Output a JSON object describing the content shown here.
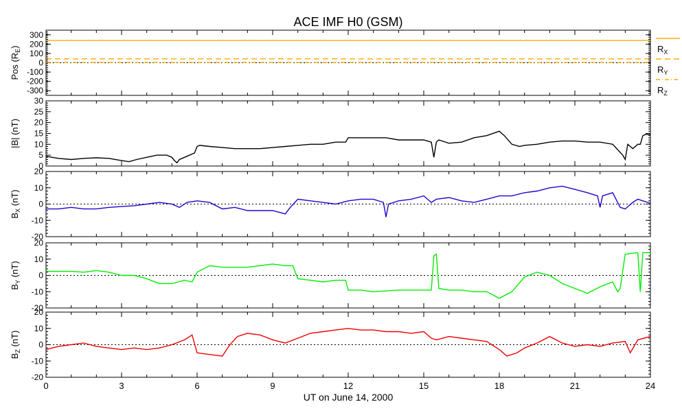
{
  "chart_data": {
    "title": "ACE IMF H0 (GSM)",
    "xlabel": "UT on June 14, 2000",
    "xlim": [
      0,
      24
    ],
    "xticks": [
      "0",
      "3",
      "6",
      "9",
      "12",
      "15",
      "18",
      "21",
      "24"
    ],
    "panels": [
      {
        "type": "line",
        "ylabel_main": "Pos (R",
        "ylabel_sub": "E",
        "ylabel_end": ")",
        "ylim": [
          -350,
          350
        ],
        "yticks": [
          300,
          200,
          100,
          0,
          -100,
          -200,
          -300
        ],
        "zero_line": true,
        "series": [
          {
            "name": "R",
            "sub": "X",
            "color": "#ffaa00",
            "dash": "solid",
            "x": [
              0,
              24
            ],
            "y": [
              240,
              240
            ]
          },
          {
            "name": "R",
            "sub": "Y",
            "color": "#ffaa00",
            "dash": "dashed",
            "x": [
              0,
              24
            ],
            "y": [
              42,
              42
            ]
          },
          {
            "name": "R",
            "sub": "Z",
            "color": "#ffaa00",
            "dash": "dashdot",
            "x": [
              0,
              24
            ],
            "y": [
              3,
              3
            ]
          }
        ]
      },
      {
        "type": "line",
        "ylabel_main": "|B| (nT)",
        "ylim": [
          0,
          30
        ],
        "yticks": [
          30,
          25,
          20,
          15,
          10,
          5,
          0
        ],
        "zero_line": false,
        "series": [
          {
            "name": "|B|",
            "color": "#000000",
            "x": [
              0,
              0.5,
              1,
              1.5,
              2,
              2.5,
              3,
              3.3,
              3.6,
              4,
              4.4,
              4.8,
              5,
              5.1,
              5.2,
              5.3,
              5.5,
              5.7,
              5.9,
              6.0,
              6.1,
              6.5,
              7,
              7.5,
              8,
              8.5,
              9,
              9.5,
              10,
              10.5,
              11,
              11.5,
              11.9,
              12.0,
              12.5,
              13,
              13.5,
              14,
              14.5,
              15,
              15.3,
              15.4,
              15.5,
              15.6,
              16,
              16.5,
              17,
              17.5,
              18,
              18.2,
              18.5,
              18.8,
              19,
              19.5,
              20,
              20.5,
              21,
              21.5,
              22,
              22.5,
              22.9,
              23.0,
              23.1,
              23.2,
              23.3,
              23.5,
              23.6,
              23.7,
              23.8,
              24
            ],
            "y": [
              4.5,
              3.5,
              3,
              3.5,
              3.8,
              3.5,
              2.5,
              2,
              3,
              4,
              5,
              5,
              4,
              2.5,
              1.5,
              3,
              4,
              5,
              6,
              9,
              9.5,
              9,
              8.5,
              8,
              8,
              8,
              8.5,
              9,
              9.5,
              10,
              10,
              11,
              11,
              13,
              13,
              13,
              13,
              12,
              12,
              12,
              11,
              4,
              11,
              12,
              10.5,
              11,
              13,
              14,
              16,
              14,
              10,
              9,
              9.5,
              10,
              11,
              11.5,
              11.5,
              11,
              11,
              10,
              5,
              3,
              10,
              9,
              8,
              10,
              10,
              14,
              14.5,
              14.5
            ]
          }
        ]
      },
      {
        "type": "line",
        "ylabel_main": "B",
        "ylabel_sub": "X",
        "ylabel_end": " (nT)",
        "ylim": [
          -20,
          20
        ],
        "yticks": [
          20,
          10,
          0,
          -10,
          -20
        ],
        "zero_line": true,
        "series": [
          {
            "name": "B_X",
            "color": "#2200cc",
            "x": [
              0,
              0.5,
              1,
              1.5,
              2,
              2.5,
              3,
              3.5,
              4,
              4.5,
              5,
              5.3,
              5.6,
              6,
              6.5,
              7,
              7.5,
              8,
              8.5,
              9,
              9.5,
              9.7,
              10,
              10.5,
              11,
              11.5,
              12,
              12.5,
              13,
              13.4,
              13.5,
              13.6,
              14,
              14.5,
              15,
              15.3,
              15.5,
              16,
              16.5,
              17,
              17.5,
              18,
              18.5,
              19,
              19.5,
              20,
              20.5,
              21,
              21.5,
              21.9,
              22.0,
              22.1,
              22.5,
              22.8,
              23,
              23.3,
              23.5,
              24
            ],
            "y": [
              -3,
              -3,
              -2,
              -3,
              -3,
              -2,
              -1.5,
              -1,
              0,
              1,
              0,
              -2,
              1,
              2,
              1,
              -3,
              -2,
              -4,
              -4,
              -4,
              -6,
              -2,
              3,
              2,
              1,
              0,
              2,
              3,
              3,
              1,
              -8,
              0,
              2,
              3,
              5,
              1,
              3,
              4,
              2,
              1,
              3,
              5,
              5,
              7,
              8,
              10,
              11,
              9,
              7,
              5,
              -2,
              5,
              7,
              -2,
              -3,
              1,
              3,
              0.5
            ]
          }
        ]
      },
      {
        "type": "line",
        "ylabel_main": "B",
        "ylabel_sub": "Y",
        "ylabel_end": " (nT)",
        "ylim": [
          -20,
          20
        ],
        "yticks": [
          20,
          10,
          0,
          -10,
          -20
        ],
        "zero_line": true,
        "series": [
          {
            "name": "B_Y",
            "color": "#00ee00",
            "x": [
              0,
              0.5,
              1,
              1.5,
              2,
              2.5,
              3,
              3.5,
              4,
              4.5,
              5,
              5.5,
              5.8,
              6,
              6.5,
              7,
              7.5,
              8,
              8.5,
              9,
              9.5,
              9.8,
              10,
              10.5,
              11,
              11.5,
              11.9,
              12.0,
              12.5,
              13,
              13.5,
              14,
              14.5,
              15,
              15.3,
              15.4,
              15.5,
              15.6,
              16,
              16.5,
              17,
              17.5,
              18,
              18.5,
              19,
              19.5,
              20,
              20.5,
              21,
              21.5,
              22,
              22.5,
              22.7,
              22.8,
              23.0,
              23.5,
              23.6,
              23.7,
              24
            ],
            "y": [
              2.5,
              2.5,
              2.5,
              2,
              3,
              2,
              0,
              0,
              -2,
              -5,
              -5,
              -3,
              -4,
              2,
              6,
              5,
              5,
              5,
              6,
              7,
              6,
              6,
              -2,
              -3,
              -4,
              -3,
              -3,
              -9,
              -9,
              -10,
              -9.5,
              -9,
              -9,
              -9,
              -9,
              12,
              13,
              -8,
              -9,
              -9,
              -10,
              -10,
              -14,
              -10,
              -1,
              2,
              0,
              -5,
              -8,
              -11,
              -7,
              -4,
              -10,
              -8,
              13,
              14,
              -10,
              14,
              14
            ]
          }
        ]
      },
      {
        "type": "line",
        "ylabel_main": "B",
        "ylabel_sub": "Z",
        "ylabel_end": " (nT)",
        "ylim": [
          -20,
          20
        ],
        "yticks": [
          20,
          10,
          0,
          -10,
          -20
        ],
        "zero_line": true,
        "series": [
          {
            "name": "B_Z",
            "color": "#ee0000",
            "x": [
              0,
              0.5,
              1,
              1.5,
              2,
              2.5,
              3,
              3.5,
              4,
              4.5,
              5,
              5.5,
              5.8,
              6,
              6.5,
              7,
              7.3,
              7.6,
              8,
              8.5,
              9,
              9.5,
              10,
              10.5,
              11,
              11.5,
              12,
              12.5,
              13,
              13.5,
              14,
              14.5,
              15,
              15.3,
              15.5,
              16,
              16.5,
              17,
              17.5,
              18,
              18.3,
              18.7,
              19,
              19.5,
              20,
              20.5,
              21,
              21.5,
              22,
              22.5,
              23,
              23.2,
              23.5,
              24
            ],
            "y": [
              -3,
              -1,
              0,
              1,
              -1,
              -2,
              -3,
              -2,
              -3,
              -2,
              0,
              3,
              6,
              -5,
              -6,
              -7,
              0,
              5,
              7,
              6,
              3,
              1,
              4,
              7,
              8,
              9,
              10,
              9,
              9,
              8,
              8,
              7,
              8,
              4,
              3,
              5,
              4,
              3,
              2,
              -3,
              -7,
              -5,
              -2,
              1,
              5,
              1,
              -1,
              0,
              -1,
              1,
              2,
              -5,
              3,
              5
            ]
          }
        ]
      }
    ]
  }
}
